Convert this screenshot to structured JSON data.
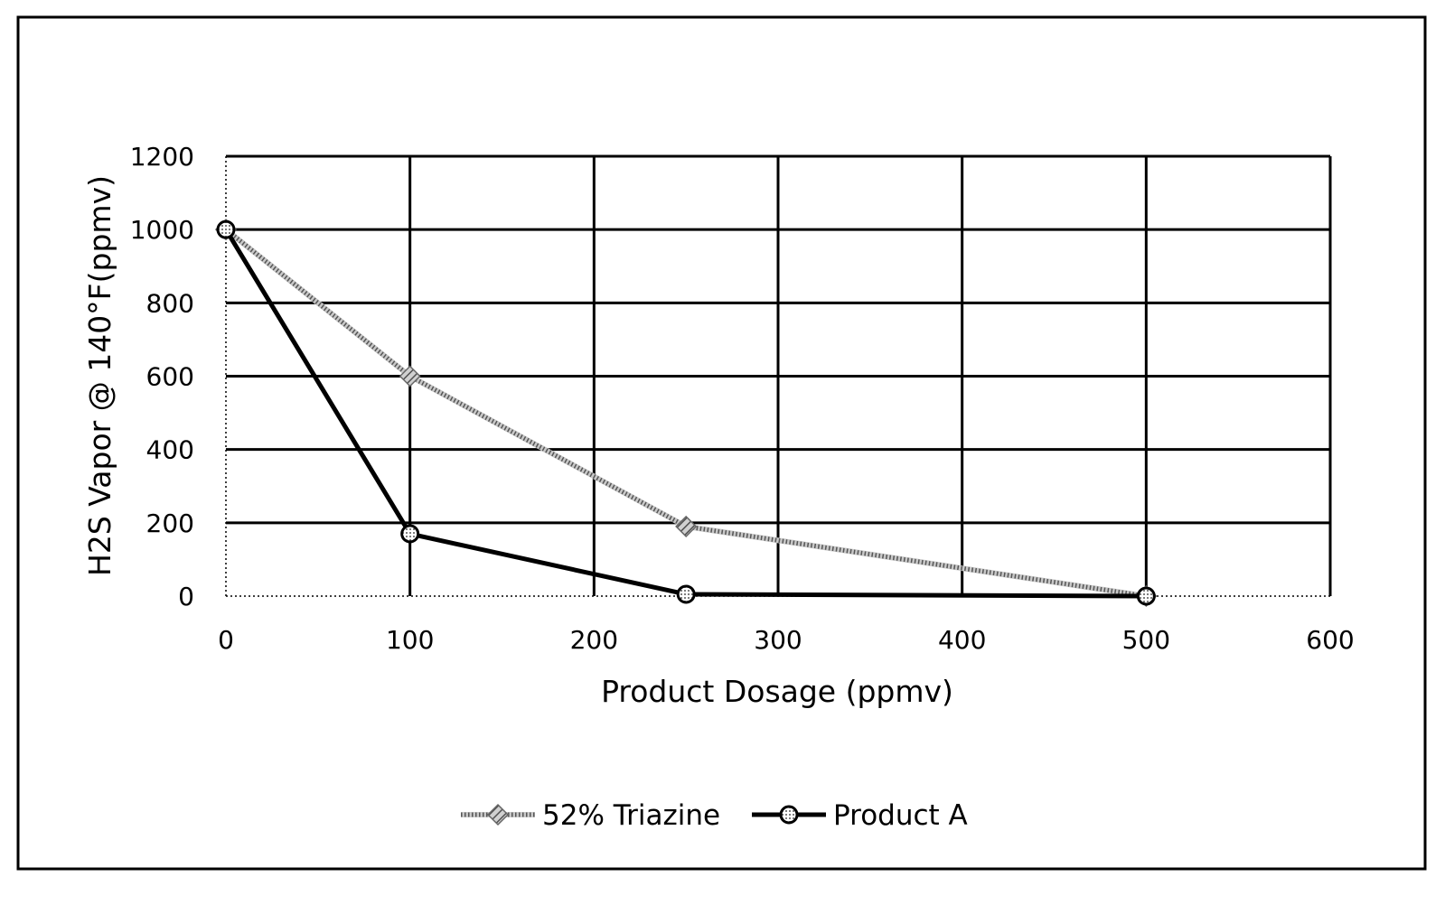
{
  "chart_data": {
    "type": "line",
    "title": "",
    "xlabel": "Product Dosage (ppmv)",
    "ylabel": "H2S Vapor @ 140°F(ppmv)",
    "xlim": [
      0,
      600
    ],
    "ylim": [
      0,
      1200
    ],
    "x_ticks": [
      "0",
      "100",
      "200",
      "300",
      "400",
      "500",
      "600"
    ],
    "y_ticks": [
      "0",
      "200",
      "400",
      "600",
      "800",
      "1000",
      "1200"
    ],
    "grid": true,
    "legend_position": "bottom",
    "series": [
      {
        "name": "52% Triazine",
        "marker": "hatched-diamond",
        "line_style": "hatched-gray",
        "points": [
          [
            0,
            1000
          ],
          [
            100,
            600
          ],
          [
            250,
            190
          ],
          [
            500,
            0
          ]
        ]
      },
      {
        "name": "Product A",
        "marker": "dotted-circle",
        "line_style": "solid-black-thick",
        "points": [
          [
            0,
            1000
          ],
          [
            100,
            170
          ],
          [
            250,
            5
          ],
          [
            500,
            0
          ]
        ]
      }
    ]
  },
  "colors": {
    "line_primary": "#000000",
    "line_secondary": "#808080",
    "background": "#ffffff"
  }
}
